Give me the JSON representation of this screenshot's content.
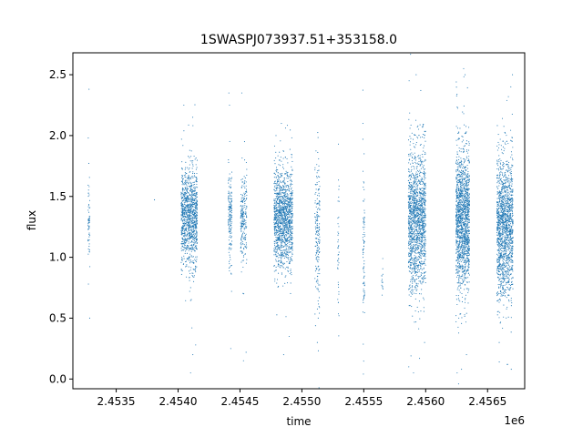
{
  "chart_data": {
    "type": "scatter",
    "title": "1SWASPJ073937.51+353158.0",
    "xlabel": "time",
    "ylabel": "flux",
    "x_offset_label": "1e6",
    "xlim": [
      2453150,
      2456800
    ],
    "ylim": [
      -0.08,
      2.68
    ],
    "grid": false,
    "marker_color": "#1f77b4",
    "xticks": [
      2453500,
      2454000,
      2454500,
      2455000,
      2455500,
      2456000,
      2456500
    ],
    "xtick_labels": [
      "2.4535",
      "2.4540",
      "2.4545",
      "2.4550",
      "2.4555",
      "2.4560",
      "2.4565"
    ],
    "yticks": [
      0.0,
      0.5,
      1.0,
      1.5,
      2.0,
      2.5
    ],
    "ytick_labels": [
      "0.0",
      "0.5",
      "1.0",
      "1.5",
      "2.0",
      "2.5"
    ],
    "series": [
      {
        "values": [
          {
            "x_center": 2453280,
            "width": 15,
            "center": 1.33,
            "sd": 0.18,
            "count": 60,
            "outliers": [
              2.38,
              0.5,
              0.78,
              1.98
            ]
          },
          {
            "x_center": 2453810,
            "width": 5,
            "center": 1.47,
            "sd": 0.02,
            "count": 2,
            "outliers": []
          },
          {
            "x_center": 2454090,
            "width": 130,
            "center": 1.32,
            "sd": 0.2,
            "count": 1100,
            "outliers": [
              2.25,
              2.15,
              0.2,
              0.05,
              0.42,
              0.28
            ]
          },
          {
            "x_center": 2454420,
            "width": 30,
            "center": 1.35,
            "sd": 0.18,
            "count": 160,
            "outliers": [
              2.35,
              2.25,
              0.25,
              0.72
            ]
          },
          {
            "x_center": 2454530,
            "width": 50,
            "center": 1.3,
            "sd": 0.19,
            "count": 220,
            "outliers": [
              2.35,
              1.95,
              0.7,
              0.15
            ]
          },
          {
            "x_center": 2454850,
            "width": 150,
            "center": 1.32,
            "sd": 0.2,
            "count": 1300,
            "outliers": [
              2.1,
              2.0,
              0.2,
              0.35
            ]
          },
          {
            "x_center": 2455125,
            "width": 40,
            "center": 1.18,
            "sd": 0.28,
            "count": 180,
            "outliers": [
              1.75,
              0.5,
              0.3
            ]
          },
          {
            "x_center": 2455295,
            "width": 12,
            "center": 1.05,
            "sd": 0.3,
            "count": 40,
            "outliers": [
              1.93,
              0.52
            ]
          },
          {
            "x_center": 2455500,
            "width": 15,
            "center": 1.0,
            "sd": 0.35,
            "count": 80,
            "outliers": [
              2.1,
              1.85,
              0.55
            ]
          },
          {
            "x_center": 2455650,
            "width": 10,
            "center": 0.85,
            "sd": 0.08,
            "count": 14,
            "outliers": []
          },
          {
            "x_center": 2455930,
            "width": 140,
            "center": 1.3,
            "sd": 0.28,
            "count": 1500,
            "outliers": [
              2.5,
              2.45,
              0.05,
              0.1,
              0.3
            ]
          },
          {
            "x_center": 2456300,
            "width": 110,
            "center": 1.3,
            "sd": 0.28,
            "count": 1500,
            "outliers": [
              2.55,
              2.5,
              0.05,
              0.08,
              0.2
            ]
          },
          {
            "x_center": 2456640,
            "width": 130,
            "center": 1.25,
            "sd": 0.28,
            "count": 1500,
            "outliers": [
              2.5,
              2.4,
              0.08,
              0.12,
              0.3
            ]
          }
        ]
      }
    ]
  }
}
